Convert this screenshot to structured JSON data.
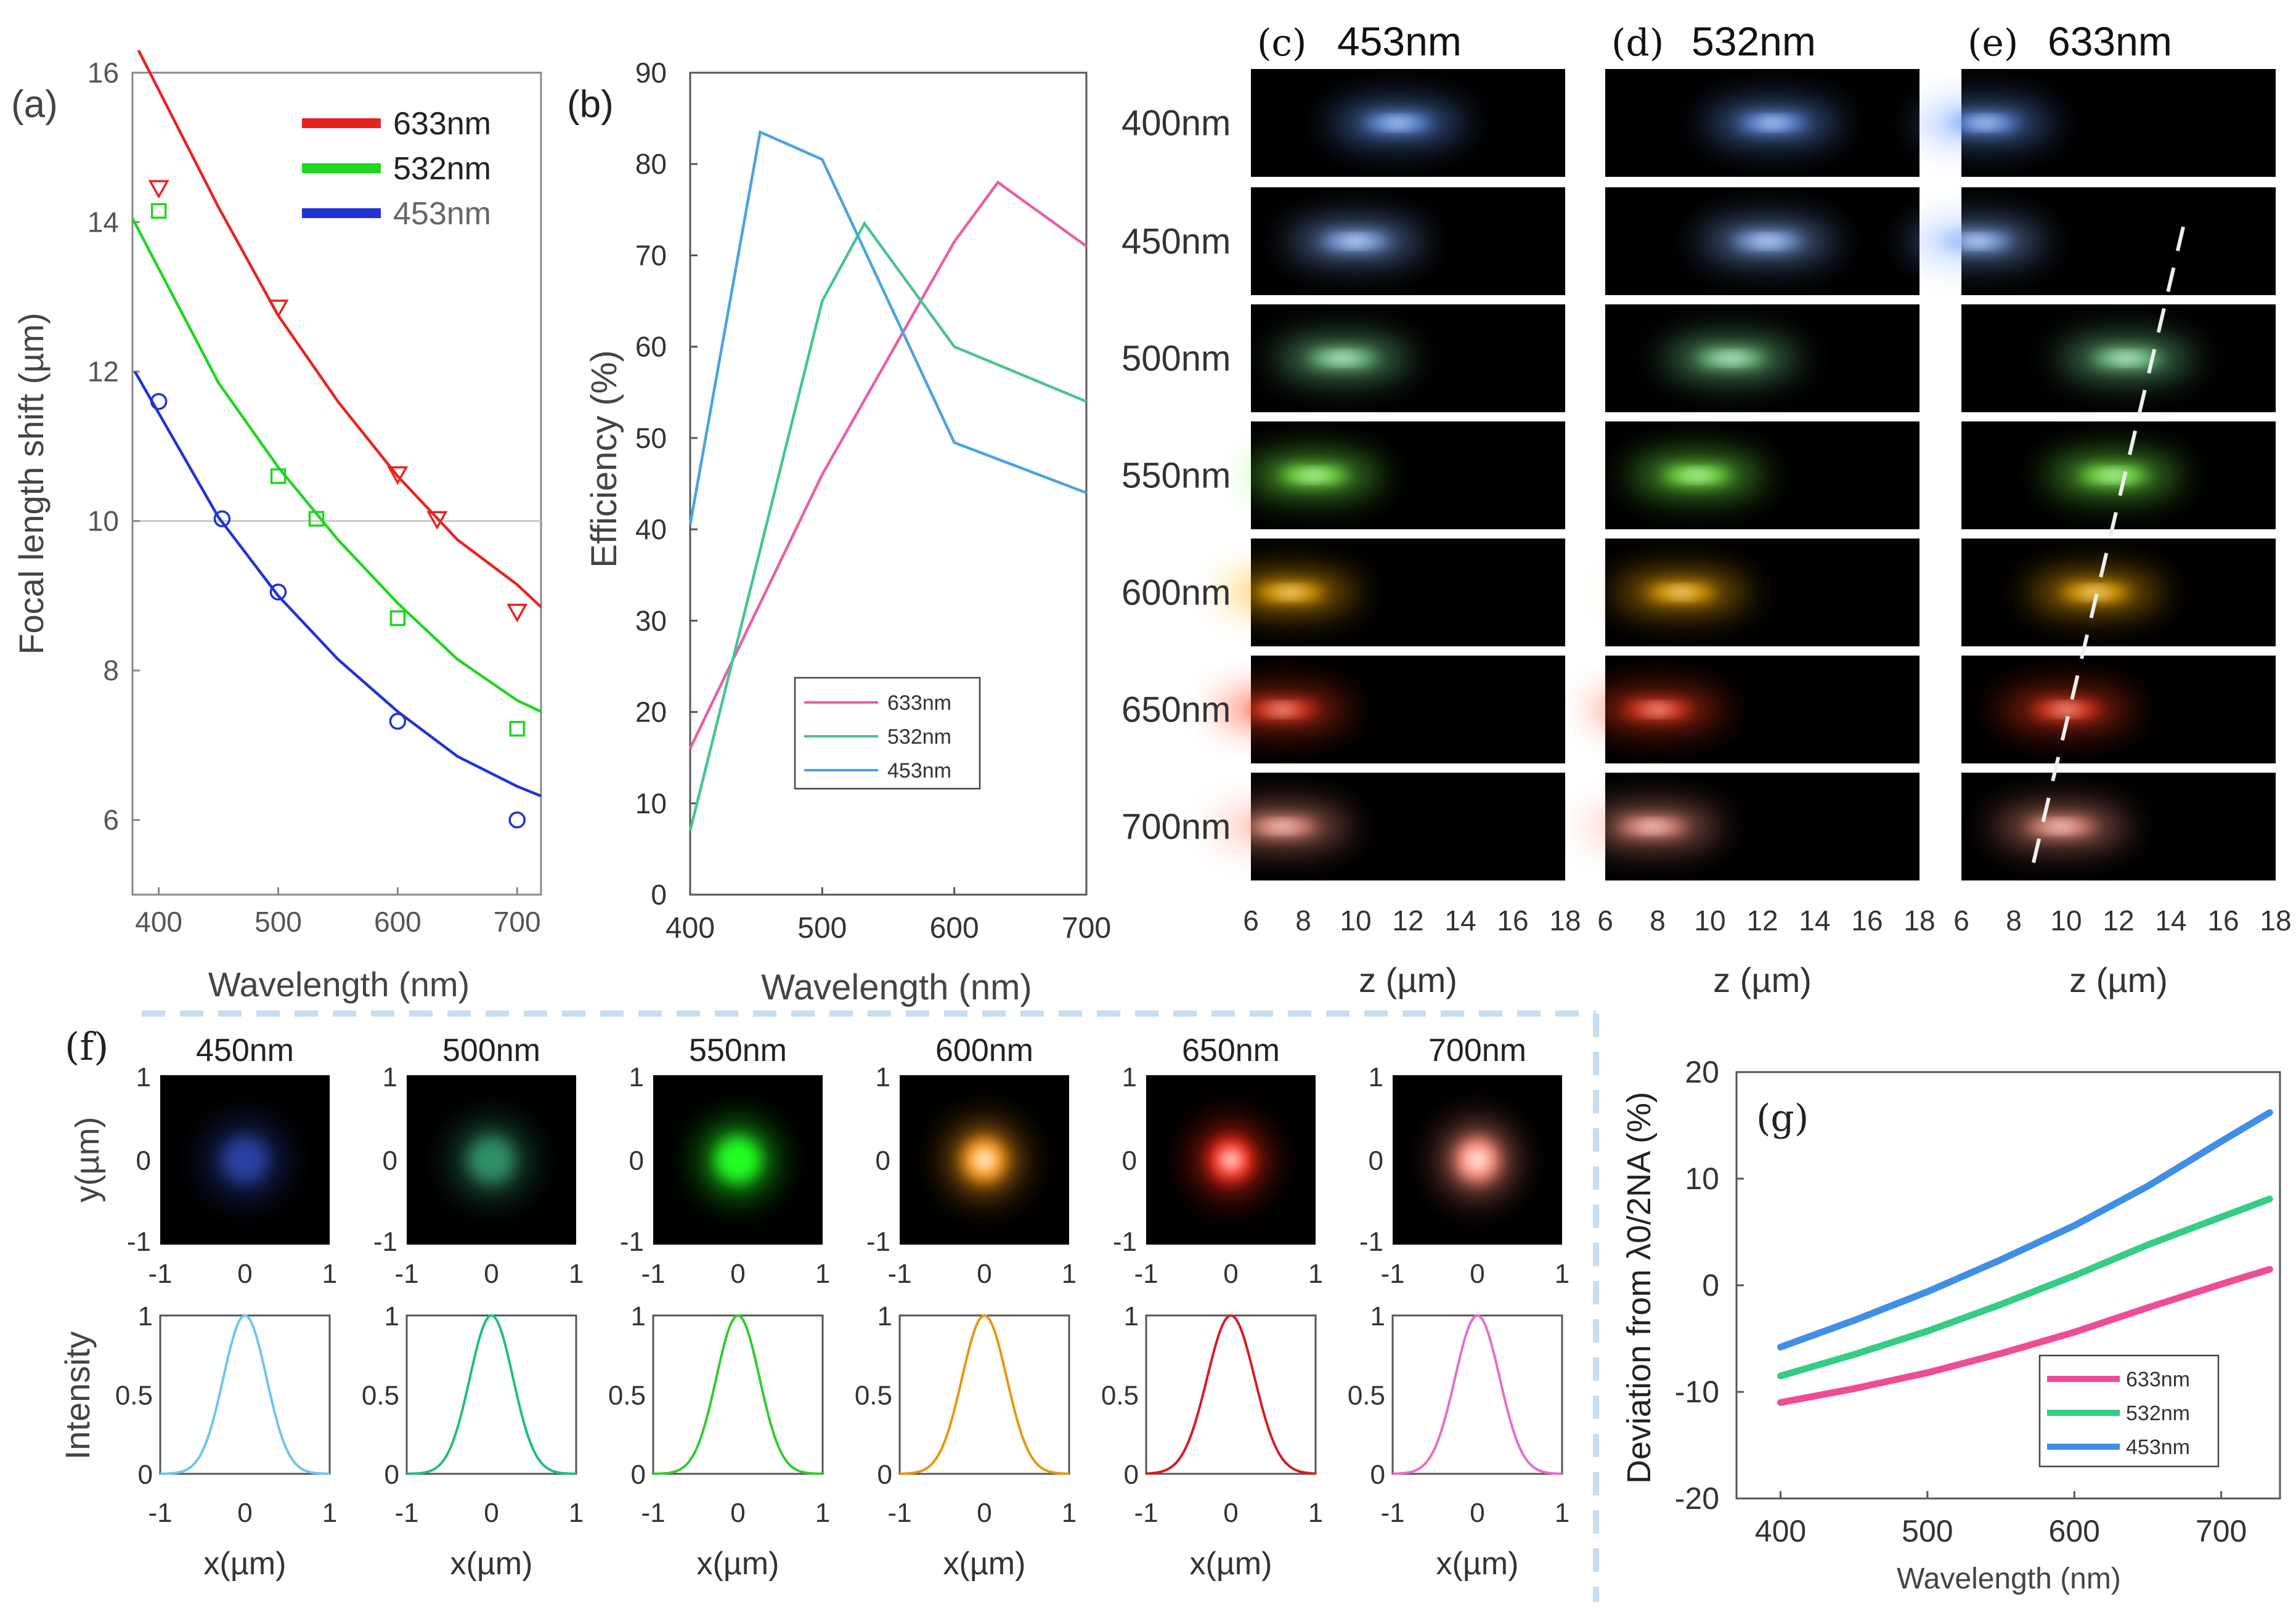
{
  "panel_labels": {
    "a": "(a)",
    "b": "(b)",
    "c": "(c)",
    "d": "(d)",
    "e": "(e)",
    "f": "(f)",
    "g": "(g)"
  },
  "chart_data": [
    {
      "id": "a",
      "type": "scatter+line",
      "ylabel": "Focal length shift (µm)",
      "xlabel": "Wavelength (nm)",
      "xlim": [
        378,
        720
      ],
      "ylim": [
        5,
        16
      ],
      "xticks": [
        400,
        500,
        600,
        700
      ],
      "yticks": [
        6,
        8,
        10,
        12,
        14,
        16
      ],
      "reference_line": 10,
      "series": [
        {
          "name": "633nm",
          "color": "#e8231f",
          "marker": "triangle",
          "points": [
            [
              400,
              14.45
            ],
            [
              500,
              12.85
            ],
            [
              600,
              10.62
            ],
            [
              633,
              10.02
            ],
            [
              700,
              8.78
            ]
          ],
          "fit": [
            [
              383,
              16.3
            ],
            [
              450,
              14.2
            ],
            [
              500,
              12.75
            ],
            [
              550,
              11.6
            ],
            [
              600,
              10.6
            ],
            [
              650,
              9.75
            ],
            [
              700,
              9.15
            ],
            [
              720,
              8.85
            ]
          ]
        },
        {
          "name": "532nm",
          "color": "#1ed61e",
          "marker": "square",
          "points": [
            [
              400,
              14.15
            ],
            [
              500,
              10.6
            ],
            [
              532,
              10.03
            ],
            [
              600,
              8.7
            ],
            [
              700,
              7.22
            ]
          ],
          "fit": [
            [
              378,
              14.05
            ],
            [
              450,
              11.85
            ],
            [
              500,
              10.72
            ],
            [
              550,
              9.75
            ],
            [
              600,
              8.9
            ],
            [
              650,
              8.15
            ],
            [
              700,
              7.6
            ],
            [
              720,
              7.45
            ]
          ]
        },
        {
          "name": "453nm",
          "color": "#1f33d8",
          "marker": "circle",
          "points": [
            [
              400,
              11.6
            ],
            [
              453,
              10.03
            ],
            [
              500,
              9.05
            ],
            [
              600,
              7.32
            ],
            [
              700,
              6.0
            ]
          ],
          "fit": [
            [
              380,
              12.0
            ],
            [
              450,
              10.05
            ],
            [
              500,
              9.0
            ],
            [
              550,
              8.15
            ],
            [
              600,
              7.45
            ],
            [
              650,
              6.85
            ],
            [
              700,
              6.45
            ],
            [
              720,
              6.32
            ]
          ]
        }
      ]
    },
    {
      "id": "b",
      "type": "line",
      "ylabel": "Efficiency (%)",
      "xlabel": "Wavelength (nm)",
      "xlim": [
        400,
        700
      ],
      "ylim": [
        0,
        90
      ],
      "xticks": [
        400,
        500,
        600,
        700
      ],
      "yticks": [
        0,
        10,
        20,
        30,
        40,
        50,
        60,
        70,
        80,
        90
      ],
      "series": [
        {
          "name": "633nm",
          "color": "#e85fa5",
          "x": [
            400,
            500,
            600,
            633,
            700
          ],
          "y": [
            16,
            46,
            71.5,
            78,
            71
          ]
        },
        {
          "name": "532nm",
          "color": "#49c48d",
          "x": [
            400,
            500,
            532,
            600,
            700
          ],
          "y": [
            7,
            65,
            73.5,
            60,
            54
          ]
        },
        {
          "name": "453nm",
          "color": "#4aa3e0",
          "x": [
            400,
            453,
            500,
            600,
            700
          ],
          "y": [
            40.5,
            83.5,
            80.5,
            49.5,
            44
          ]
        }
      ]
    },
    {
      "id": "c-e",
      "type": "heatmap",
      "xlabel": "z (µm)",
      "xlim": [
        6,
        18
      ],
      "xticks": [
        6,
        8,
        10,
        12,
        14,
        16,
        18
      ],
      "columns": [
        "453nm",
        "532nm",
        "633nm"
      ],
      "rows": [
        "400nm",
        "450nm",
        "500nm",
        "550nm",
        "600nm",
        "650nm",
        "700nm"
      ],
      "row_colors": [
        "#6da0ff",
        "#8ab4ff",
        "#7fe09a",
        "#7dff4a",
        "#ffb000",
        "#ff3c1a",
        "#ff9a88"
      ],
      "focus_z": [
        [
          11.6,
          12.4,
          6.9
        ],
        [
          10.0,
          12.2,
          6.6
        ],
        [
          9.5,
          10.8,
          12.3
        ],
        [
          8.4,
          9.5,
          11.8
        ],
        [
          7.5,
          8.9,
          11.1
        ],
        [
          7.2,
          8.0,
          10.0
        ],
        [
          7.2,
          7.8,
          9.8
        ]
      ],
      "dashed_guide": "633nm column"
    },
    {
      "id": "f",
      "type": "line",
      "top_ylabel": "y(µm)",
      "ylabel": "Intensity",
      "xlabel": "x(µm)",
      "xlim": [
        -1,
        1
      ],
      "ylim": [
        0,
        1
      ],
      "xticks": [
        -1,
        0,
        1
      ],
      "yticks": [
        0,
        0.5,
        1
      ],
      "series": [
        {
          "name": "450nm",
          "color": "#6cc6ef",
          "spot": "#2a3fa0",
          "fwhm": 0.6
        },
        {
          "name": "500nm",
          "color": "#1fbf7a",
          "spot": "#2e8f66",
          "fwhm": 0.6
        },
        {
          "name": "550nm",
          "color": "#32cc2e",
          "spot": "#22ff22",
          "fwhm": 0.6
        },
        {
          "name": "600nm",
          "color": "#e8960f",
          "spot": "#ff9a18",
          "fwhm": 0.62
        },
        {
          "name": "650nm",
          "color": "#d81a24",
          "spot": "#ff2a18",
          "fwhm": 0.66
        },
        {
          "name": "700nm",
          "color": "#e86cc8",
          "spot": "#ff8a78",
          "fwhm": 0.62
        }
      ]
    },
    {
      "id": "g",
      "type": "line",
      "ylabel": "Deviation from λ0/2NA (%)",
      "xlabel": "Wavelength (nm)",
      "xlim": [
        370,
        740
      ],
      "ylim": [
        -20,
        20
      ],
      "xticks": [
        400,
        500,
        600,
        700
      ],
      "yticks": [
        -20,
        -10,
        0,
        10,
        20
      ],
      "series": [
        {
          "name": "633nm",
          "color": "#ef4c95",
          "x": [
            400,
            450,
            500,
            550,
            600,
            650,
            700,
            733
          ],
          "y": [
            -11,
            -9.7,
            -8.2,
            -6.4,
            -4.4,
            -2.1,
            0.1,
            1.5
          ]
        },
        {
          "name": "532nm",
          "color": "#35cc86",
          "x": [
            400,
            450,
            500,
            550,
            600,
            650,
            700,
            733
          ],
          "y": [
            -8.5,
            -6.5,
            -4.3,
            -1.8,
            0.9,
            3.8,
            6.4,
            8.1
          ]
        },
        {
          "name": "453nm",
          "color": "#3f8fe6",
          "x": [
            400,
            450,
            500,
            550,
            600,
            650,
            700,
            733
          ],
          "y": [
            -5.8,
            -3.3,
            -0.6,
            2.4,
            5.6,
            9.3,
            13.5,
            16.2
          ]
        }
      ]
    }
  ]
}
